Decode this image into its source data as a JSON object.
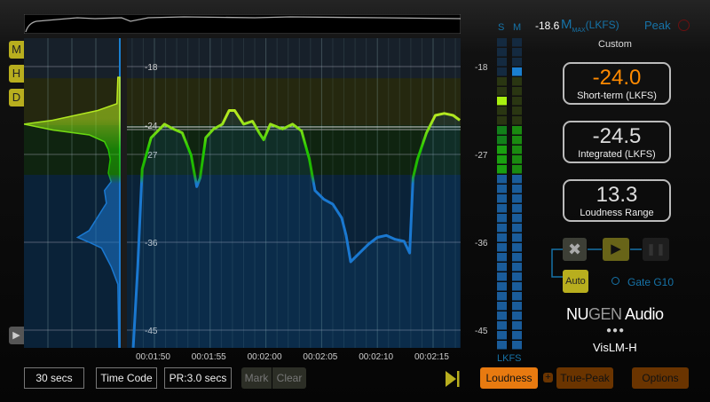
{
  "side_buttons": [
    "M",
    "H",
    "D"
  ],
  "graph": {
    "scale_labels": [
      "-18",
      "-24",
      "-27",
      "-36",
      "-45"
    ],
    "scale_values": [
      -18,
      -24,
      -27,
      -36,
      -45
    ],
    "target_lkfs": -24,
    "time_ticks": [
      "00:01:50",
      "00:01:55",
      "00:02:00",
      "00:02:05",
      "00:02:10",
      "00:02:15"
    ],
    "time_tick_seconds": [
      110,
      115,
      120,
      125,
      130,
      135
    ],
    "loudness_curve": [
      [
        108.1,
        -46.8
      ],
      [
        108.5,
        -38.5
      ],
      [
        108.9,
        -28.5
      ],
      [
        109.7,
        -25.3
      ],
      [
        110.9,
        -23.9
      ],
      [
        111.7,
        -24.4
      ],
      [
        112.5,
        -24.8
      ],
      [
        113.3,
        -27.1
      ],
      [
        113.8,
        -30.3
      ],
      [
        114.1,
        -29.4
      ],
      [
        114.6,
        -25.3
      ],
      [
        115.3,
        -24.4
      ],
      [
        116.1,
        -23.9
      ],
      [
        116.7,
        -22.5
      ],
      [
        117.2,
        -22.5
      ],
      [
        118.0,
        -23.9
      ],
      [
        118.8,
        -23.6
      ],
      [
        119.4,
        -24.8
      ],
      [
        119.8,
        -25.5
      ],
      [
        120.4,
        -23.9
      ],
      [
        121.5,
        -24.4
      ],
      [
        122.4,
        -23.9
      ],
      [
        123.2,
        -24.6
      ],
      [
        123.9,
        -27.5
      ],
      [
        124.4,
        -30.7
      ],
      [
        125.2,
        -31.6
      ],
      [
        126.0,
        -32.1
      ],
      [
        126.8,
        -33.5
      ],
      [
        127.2,
        -35.3
      ],
      [
        127.6,
        -38.0
      ],
      [
        128.4,
        -37.1
      ],
      [
        129.2,
        -36.2
      ],
      [
        130.0,
        -35.5
      ],
      [
        130.8,
        -35.3
      ],
      [
        131.6,
        -35.7
      ],
      [
        132.4,
        -35.9
      ],
      [
        132.9,
        -37.1
      ],
      [
        133.2,
        -29.4
      ],
      [
        133.6,
        -27.5
      ],
      [
        134.4,
        -24.8
      ],
      [
        135.2,
        -23.0
      ],
      [
        136.0,
        -22.8
      ],
      [
        136.8,
        -23.0
      ],
      [
        137.4,
        -23.5
      ]
    ],
    "histogram": [
      [
        -19.1,
        0.02
      ],
      [
        -21.8,
        0.03
      ],
      [
        -22.5,
        0.23
      ],
      [
        -23.5,
        0.7
      ],
      [
        -23.9,
        1.0
      ],
      [
        -24.5,
        0.7
      ],
      [
        -25.0,
        0.32
      ],
      [
        -25.7,
        0.16
      ],
      [
        -26.5,
        0.12
      ],
      [
        -27.5,
        0.1
      ],
      [
        -28.9,
        0.12
      ],
      [
        -29.8,
        0.09
      ],
      [
        -30.7,
        0.16
      ],
      [
        -32.0,
        0.14
      ],
      [
        -33.4,
        0.23
      ],
      [
        -34.8,
        0.32
      ],
      [
        -35.5,
        0.44
      ],
      [
        -36.0,
        0.32
      ],
      [
        -36.6,
        0.19
      ],
      [
        -38.5,
        0.09
      ],
      [
        -40.3,
        0.02
      ],
      [
        -46.8,
        0.01
      ]
    ],
    "zones": {
      "yellow": [
        -19.2,
        -24
      ],
      "green": [
        -24,
        -29.1
      ]
    }
  },
  "meters": {
    "s_label": "S",
    "m_label": "M",
    "unit": "LKFS",
    "scale_labels": [
      "-18",
      "-27",
      "-36",
      "-45"
    ],
    "scale_values": [
      -18,
      -27,
      -36,
      -45
    ],
    "s_peak": -21.5,
    "m_peak": -18.6
  },
  "header": {
    "mmax_value": "-18.6",
    "mmax_m": "M",
    "mmax_sub": "MAX",
    "mmax_unit": "(LKFS)",
    "peak_label": "Peak"
  },
  "preset": "Custom",
  "readouts": [
    {
      "value": "-24.0",
      "label": "Short-term (LKFS)",
      "color": "#ff8a00"
    },
    {
      "value": "-24.5",
      "label": "Integrated (LKFS)",
      "color": "#ffffff"
    },
    {
      "value": "13.3",
      "label": "Loudness Range",
      "color": "#ffffff"
    }
  ],
  "transport": {
    "auto_label": "Auto",
    "gate_label": "Gate G10"
  },
  "brand": {
    "nu": "NU",
    "gen": "GEN",
    "audio": "Audio",
    "product": "VisLM-H"
  },
  "bottom": {
    "time_range": "30 secs",
    "time_mode": "Time Code",
    "pr": "PR:3.0 secs",
    "mark": "Mark",
    "clear": "Clear",
    "loudness": "Loudness",
    "plus": "+",
    "true_peak": "True-Peak",
    "options": "Options"
  },
  "colors": {
    "accent": "#b8ae1e",
    "orange": "#e87a10",
    "blue": "#1a7fd0",
    "green": "#22c000"
  }
}
